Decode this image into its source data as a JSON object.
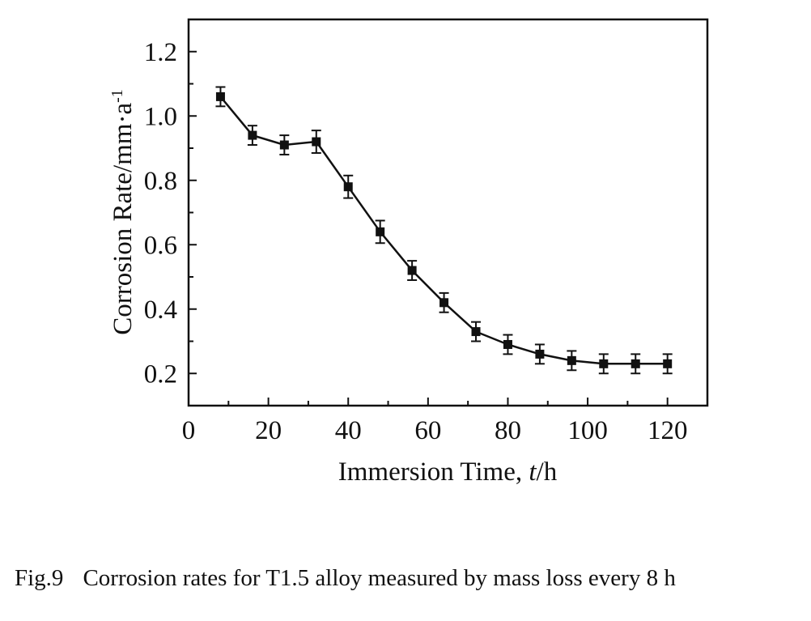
{
  "caption": {
    "figure_number": "Fig.9",
    "text": "Corrosion rates for T1.5 alloy measured by mass loss every 8 h"
  },
  "chart_data": {
    "type": "line",
    "title": "",
    "xlabel_parts": [
      "Immersion Time, ",
      "t",
      "/h"
    ],
    "ylabel_parts": [
      "Corrosion Rate/mm·a",
      "-1"
    ],
    "xlim": [
      0,
      130
    ],
    "ylim": [
      0.1,
      1.3
    ],
    "xticks": [
      0,
      20,
      40,
      60,
      80,
      100,
      120
    ],
    "yticks": [
      0.2,
      0.4,
      0.6,
      0.8,
      1.0,
      1.2
    ],
    "xtick_labels": [
      "0",
      "20",
      "40",
      "60",
      "80",
      "100",
      "120"
    ],
    "ytick_labels": [
      "0.2",
      "0.4",
      "0.6",
      "0.8",
      "1.0",
      "1.2"
    ],
    "grid": false,
    "series": [
      {
        "marker": "square",
        "color": "#111111",
        "x": [
          8,
          16,
          24,
          32,
          40,
          48,
          56,
          64,
          72,
          80,
          88,
          96,
          104,
          112,
          120
        ],
        "y": [
          1.06,
          0.94,
          0.91,
          0.92,
          0.78,
          0.64,
          0.52,
          0.42,
          0.33,
          0.29,
          0.26,
          0.24,
          0.23,
          0.23,
          0.23
        ],
        "yerr": [
          0.03,
          0.03,
          0.03,
          0.035,
          0.035,
          0.035,
          0.03,
          0.03,
          0.03,
          0.03,
          0.03,
          0.03,
          0.03,
          0.03,
          0.03
        ]
      }
    ]
  }
}
